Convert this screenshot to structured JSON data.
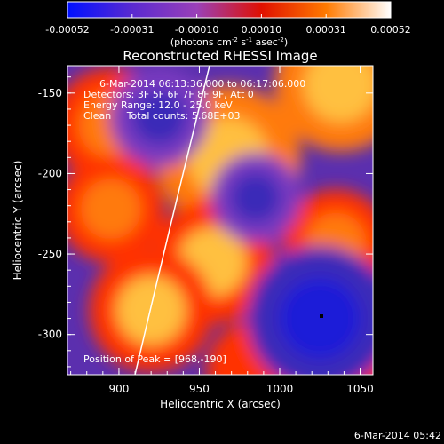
{
  "colorbar": {
    "ticks": [
      "-0.00052",
      "-0.00031",
      "-0.00010",
      "0.00010",
      "0.00031",
      "0.00052"
    ],
    "unit_base": "(photons cm",
    "unit_exp1": "-2",
    "unit_mid": " s",
    "unit_exp2": "-1",
    "unit_mid2": " asec",
    "unit_exp3": "-2",
    "unit_end": ")",
    "colors": [
      "#0010ff",
      "#5a2ad0",
      "#9a40b8",
      "#e01000",
      "#ff7a00",
      "#ffffff"
    ]
  },
  "image": {
    "title": "Reconstructed RHESSI Image",
    "info_time": "6-Mar-2014 06:13:36.000 to 06:17:06.000",
    "info_detectors": "Detectors: 3F 5F 6F 7F 8F 9F, Att 0",
    "info_energy": "Energy Range: 12.0 - 25.0 keV",
    "info_clean": "Clean     Total counts: 5.68E+03",
    "peak_label": "Position of Peak = [968,-190]",
    "x_axis_label": "Heliocentric X (arcsec)",
    "y_axis_label": "Heliocentric Y (arcsec)",
    "x_ticks": [
      "900",
      "950",
      "1000",
      "1050"
    ],
    "y_ticks": [
      "-150",
      "-200",
      "-250",
      "-300"
    ],
    "x_range": [
      868,
      1058
    ],
    "y_range": [
      -325,
      -133
    ],
    "timestamp": "6-Mar-2014 05:42",
    "blobs": [
      {
        "name": "source-upper-right",
        "x": 1038,
        "y": -145,
        "value": 0.00045
      },
      {
        "name": "source-top-center",
        "x": 968,
        "y": -190,
        "value": 0.00052
      },
      {
        "name": "source-left-upper",
        "x": 895,
        "y": -170,
        "value": 0.00035
      },
      {
        "name": "source-left-mid",
        "x": 895,
        "y": -222,
        "value": 0.0003
      },
      {
        "name": "source-center-mid",
        "x": 958,
        "y": -255,
        "value": 0.0004
      },
      {
        "name": "source-right-mid",
        "x": 1035,
        "y": -243,
        "value": 0.0003
      },
      {
        "name": "source-lower-left",
        "x": 920,
        "y": -285,
        "value": 0.0004
      },
      {
        "name": "source-right-lower",
        "x": 1055,
        "y": -325,
        "value": 0.0002
      },
      {
        "name": "source-bottom-center",
        "x": 985,
        "y": -322,
        "value": 0.00025
      },
      {
        "name": "negative-lower-right",
        "x": 1025,
        "y": -290,
        "value": -0.00052
      },
      {
        "name": "negative-upper-center",
        "x": 925,
        "y": -165,
        "value": -0.00025
      },
      {
        "name": "negative-center",
        "x": 985,
        "y": -215,
        "value": -0.0002
      }
    ]
  }
}
